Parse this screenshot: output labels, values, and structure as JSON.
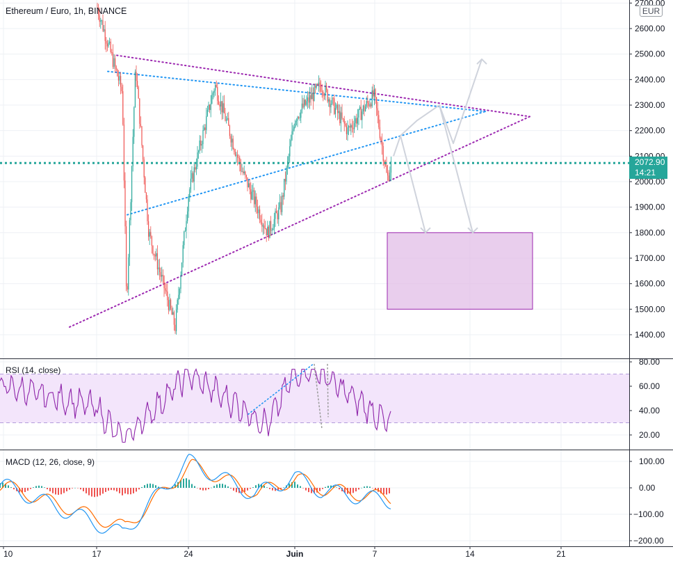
{
  "title": "Ethereum / Euro, 1h, BINANCE",
  "currency": "EUR",
  "last_price": "2072.90",
  "countdown": "14:21",
  "price_axis": {
    "ticks": [
      "2700.00",
      "2600.00",
      "2500.00",
      "2400.00",
      "2300.00",
      "2200.00",
      "2100.00",
      "2000.00",
      "1900.00",
      "1800.00",
      "1700.00",
      "1600.00",
      "1500.00",
      "1400.00"
    ]
  },
  "rsi_pane": {
    "label": "RSI (14, close)",
    "ticks": [
      "80.00",
      "60.00",
      "40.00",
      "20.00"
    ]
  },
  "macd_pane": {
    "label": "MACD (12, 26, close, 9)",
    "ticks": [
      "100.00",
      "0.00",
      "−100.00",
      "−200.00"
    ]
  },
  "time_axis": {
    "ticks": [
      "10",
      "17",
      "24",
      "Juin",
      "7",
      "14",
      "21"
    ]
  },
  "colors": {
    "up": "#26a69a",
    "down": "#ef5350",
    "last_line": "#26a69a",
    "trend_purple": "#9c27b0",
    "trend_blue": "#2196f3",
    "rsi_line": "#8e24aa",
    "rsi_band": "#f3e5fb",
    "target_box": "#e1bee7",
    "macd_line": "#2196f3",
    "signal_line": "#ff6d00",
    "projection": "#cfd3dc"
  },
  "chart_data": [
    {
      "type": "candlestick",
      "title": "Ethereum / Euro, 1h, BINANCE",
      "x_range": [
        "May 10",
        "Jun 23"
      ],
      "ylim": [
        1350,
        2720
      ],
      "last_value": 2072.9,
      "grid": true,
      "key_points": [
        {
          "date": "May 17",
          "price": 2700
        },
        {
          "date": "May 19",
          "price": 2350
        },
        {
          "date": "May 19",
          "price": 1520
        },
        {
          "date": "May 20",
          "price": 2450
        },
        {
          "date": "May 21",
          "price": 1800
        },
        {
          "date": "May 23",
          "price": 1430
        },
        {
          "date": "May 24",
          "price": 1950
        },
        {
          "date": "May 26",
          "price": 2380
        },
        {
          "date": "May 28",
          "price": 2050
        },
        {
          "date": "May 30",
          "price": 1800
        },
        {
          "date": "May 31",
          "price": 1900
        },
        {
          "date": "Jun 1",
          "price": 2250
        },
        {
          "date": "Jun 3",
          "price": 2380
        },
        {
          "date": "Jun 5",
          "price": 2200
        },
        {
          "date": "Jun 7",
          "price": 2340
        },
        {
          "date": "Jun 8",
          "price": 2010
        },
        {
          "date": "Jun 8",
          "price": 2072.9
        }
      ],
      "annotations": {
        "target_zone": {
          "from": "Jun 8",
          "to": "Jun 19",
          "price_range": [
            1500,
            1800
          ]
        },
        "triangle_apex": {
          "date": "Jun 18",
          "price": 2255
        }
      }
    },
    {
      "type": "line",
      "title": "RSI (14, close)",
      "ylim": [
        10,
        80
      ],
      "band": [
        30,
        70
      ],
      "key_points": [
        {
          "date": "May 10",
          "value": 60
        },
        {
          "date": "May 17",
          "value": 43
        },
        {
          "date": "May 19",
          "value": 15
        },
        {
          "date": "May 24",
          "value": 70
        },
        {
          "date": "May 30",
          "value": 28
        },
        {
          "date": "Jun 1",
          "value": 72
        },
        {
          "date": "Jun 3",
          "value": 70
        },
        {
          "date": "Jun 8",
          "value": 30
        }
      ]
    },
    {
      "type": "line",
      "title": "MACD (12, 26, close, 9)",
      "ylim": [
        -210,
        115
      ],
      "series": [
        {
          "name": "MACD",
          "key_points": [
            {
              "date": "May 10",
              "value": 10
            },
            {
              "date": "May 19",
              "value": -175
            },
            {
              "date": "May 24",
              "value": 100
            },
            {
              "date": "May 29",
              "value": -25
            },
            {
              "date": "Jun 1",
              "value": 40
            },
            {
              "date": "Jun 3",
              "value": -10
            },
            {
              "date": "Jun 8",
              "value": -50
            }
          ]
        },
        {
          "name": "Signal",
          "key_points": [
            {
              "date": "May 10",
              "value": 5
            },
            {
              "date": "May 19",
              "value": -150
            },
            {
              "date": "May 24",
              "value": 85
            },
            {
              "date": "May 29",
              "value": -20
            },
            {
              "date": "Jun 1",
              "value": 35
            },
            {
              "date": "Jun 3",
              "value": -5
            },
            {
              "date": "Jun 8",
              "value": -40
            }
          ]
        }
      ]
    }
  ]
}
